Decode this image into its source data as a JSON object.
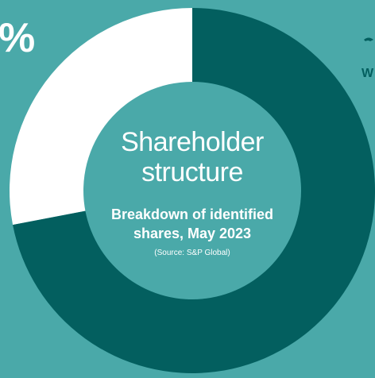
{
  "chart_data": {
    "type": "donut",
    "title": "Shareholder structure",
    "subtitle": "Breakdown of identified shares, May 2023",
    "source": "(Source: S&P Global)",
    "annotations": [
      "%",
      "W"
    ],
    "values": [
      72,
      28
    ],
    "colors": [
      "#035f5f",
      "#ffffff"
    ]
  }
}
